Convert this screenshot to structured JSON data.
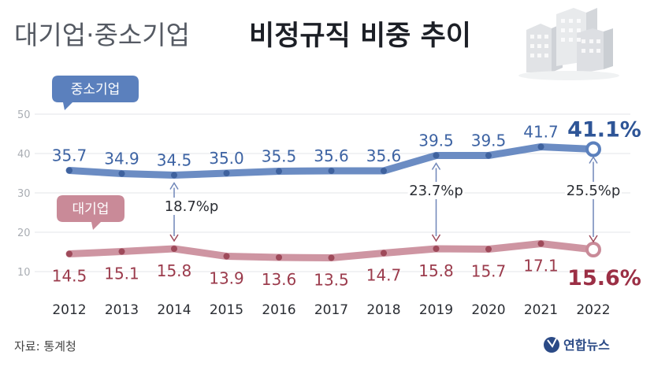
{
  "title_light": "대기업·중소기업",
  "title_bold": "비정규직 비중 추이",
  "source": "자료: 통계청",
  "logo": "연합뉴스",
  "colors": {
    "sme": "#5b80bd",
    "large": "#c98a98",
    "grid": "#e3e5e8"
  },
  "chart_data": {
    "type": "line",
    "x": [
      "2012",
      "2013",
      "2014",
      "2015",
      "2016",
      "2017",
      "2018",
      "2019",
      "2020",
      "2021",
      "2022"
    ],
    "ylim": [
      10,
      50
    ],
    "yticks": [
      "10",
      "20",
      "30",
      "40",
      "50"
    ],
    "series": [
      {
        "name": "중소기업",
        "values": [
          35.7,
          34.9,
          34.5,
          35.0,
          35.5,
          35.6,
          35.6,
          39.5,
          39.5,
          41.7,
          41.1
        ],
        "labels": [
          "35.7",
          "34.9",
          "34.5",
          "35.0",
          "35.5",
          "35.6",
          "35.6",
          "39.5",
          "39.5",
          "41.7",
          "41.1%"
        ]
      },
      {
        "name": "대기업",
        "values": [
          14.5,
          15.1,
          15.8,
          13.9,
          13.6,
          13.5,
          14.7,
          15.8,
          15.7,
          17.1,
          15.6
        ],
        "labels": [
          "14.5",
          "15.1",
          "15.8",
          "13.9",
          "13.6",
          "13.5",
          "14.7",
          "15.8",
          "15.7",
          "17.1",
          "15.6%"
        ]
      }
    ],
    "gaps": [
      {
        "year": "2014",
        "label": "18.7%p"
      },
      {
        "year": "2019",
        "label": "23.7%p"
      },
      {
        "year": "2022",
        "label": "25.5%p"
      }
    ],
    "grid": true
  }
}
